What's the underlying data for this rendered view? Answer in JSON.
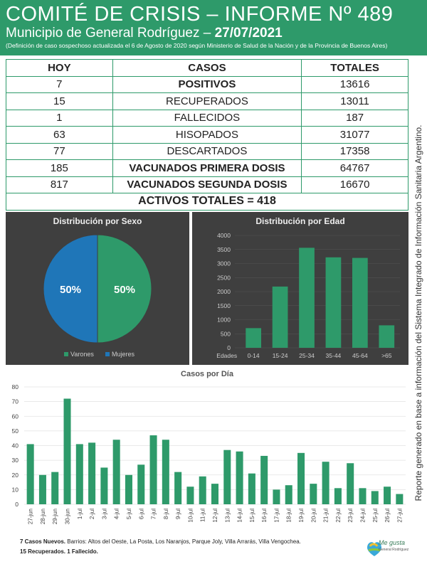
{
  "header": {
    "title": "COMITÉ DE CRISIS – INFORME Nº 489",
    "subtitle": "Municipio de General Rodríguez –",
    "date": "27/07/2021",
    "note": "(Definición de caso sospechoso actualizada el 6 de Agosto de 2020 según Ministerio de Salud de la Nación y de la Provincia de Buenos Aires)"
  },
  "table": {
    "headers": [
      "HOY",
      "CASOS",
      "TOTALES"
    ],
    "rows": [
      {
        "hoy": "7",
        "casos": "POSITIVOS",
        "totales": "13616"
      },
      {
        "hoy": "15",
        "casos": "RECUPERADOS",
        "totales": "13011"
      },
      {
        "hoy": "1",
        "casos": "FALLECIDOS",
        "totales": "187"
      },
      {
        "hoy": "63",
        "casos": "HISOPADOS",
        "totales": "31077"
      },
      {
        "hoy": "77",
        "casos": "DESCARTADOS",
        "totales": "17358"
      },
      {
        "hoy": "185",
        "casos": "VACUNADOS PRIMERA DOSIS",
        "totales": "64767"
      },
      {
        "hoy": "817",
        "casos": "VACUNADOS SEGUNDA DOSIS",
        "totales": "16670"
      }
    ],
    "activos": "ACTIVOS TOTALES = 418"
  },
  "side_text": "Reporte generado en base a información del Sistema Integrado de Información Sanitaria Argentino.",
  "colors": {
    "green": "#2e9a6a",
    "blue": "#1f76b8",
    "orange": "#ee8a1e",
    "panel": "#3f3f3f",
    "bar": "#2e9a6a"
  },
  "chart_data": [
    {
      "type": "pie",
      "title": "Distribución por Sexo",
      "categories": [
        "Varones",
        "Mujeres"
      ],
      "values": [
        50,
        50
      ],
      "labels": [
        "50%",
        "50%"
      ],
      "colors": [
        "#2e9a6a",
        "#1f76b8"
      ],
      "legend": "bottom"
    },
    {
      "type": "bar",
      "title": "Distribución por Edad",
      "xlabel": "Edades",
      "categories": [
        "0-14",
        "15-24",
        "25-34",
        "35-44",
        "45-64",
        ">65"
      ],
      "values": [
        700,
        2180,
        3560,
        3220,
        3200,
        800
      ],
      "ylim": [
        0,
        4000
      ],
      "yticks": [
        0,
        500,
        1000,
        1500,
        2000,
        2500,
        3000,
        3500,
        4000
      ]
    },
    {
      "type": "bar",
      "title": "Casos por Día",
      "categories": [
        "27-jun",
        "28-jun",
        "29-jun",
        "30-jun",
        "1-jul",
        "2-jul",
        "3-jul",
        "4-jul",
        "5-jul",
        "6-jul",
        "7-jul",
        "8-jul",
        "9-jul",
        "10-jul",
        "11-jul",
        "12-jul",
        "13-jul",
        "14-jul",
        "15-jul",
        "16-jul",
        "17-jul",
        "18-jul",
        "19-jul",
        "20-jul",
        "21-jul",
        "22-jul",
        "23-jul",
        "24-jul",
        "25-jul",
        "26-jul",
        "27-jul"
      ],
      "values": [
        41,
        20,
        22,
        72,
        41,
        42,
        25,
        44,
        20,
        27,
        47,
        44,
        22,
        12,
        19,
        14,
        37,
        36,
        21,
        33,
        10,
        13,
        35,
        14,
        29,
        11,
        28,
        11,
        9,
        12,
        7
      ],
      "ylim": [
        0,
        80
      ],
      "yticks": [
        0,
        10,
        20,
        30,
        40,
        50,
        60,
        70,
        80
      ]
    }
  ],
  "footer": {
    "line1_bold": "7 Casos Nuevos.",
    "line1_rest": " Barrios: Altos del Oeste, La Posta, Los Naranjos, Parque Joly, Villa Arrarás, Villa Vengochea.",
    "line2": "15 Recuperados. 1 Fallecido."
  },
  "logo": {
    "line1": "Me gusta",
    "line2": "General Rodríguez"
  }
}
